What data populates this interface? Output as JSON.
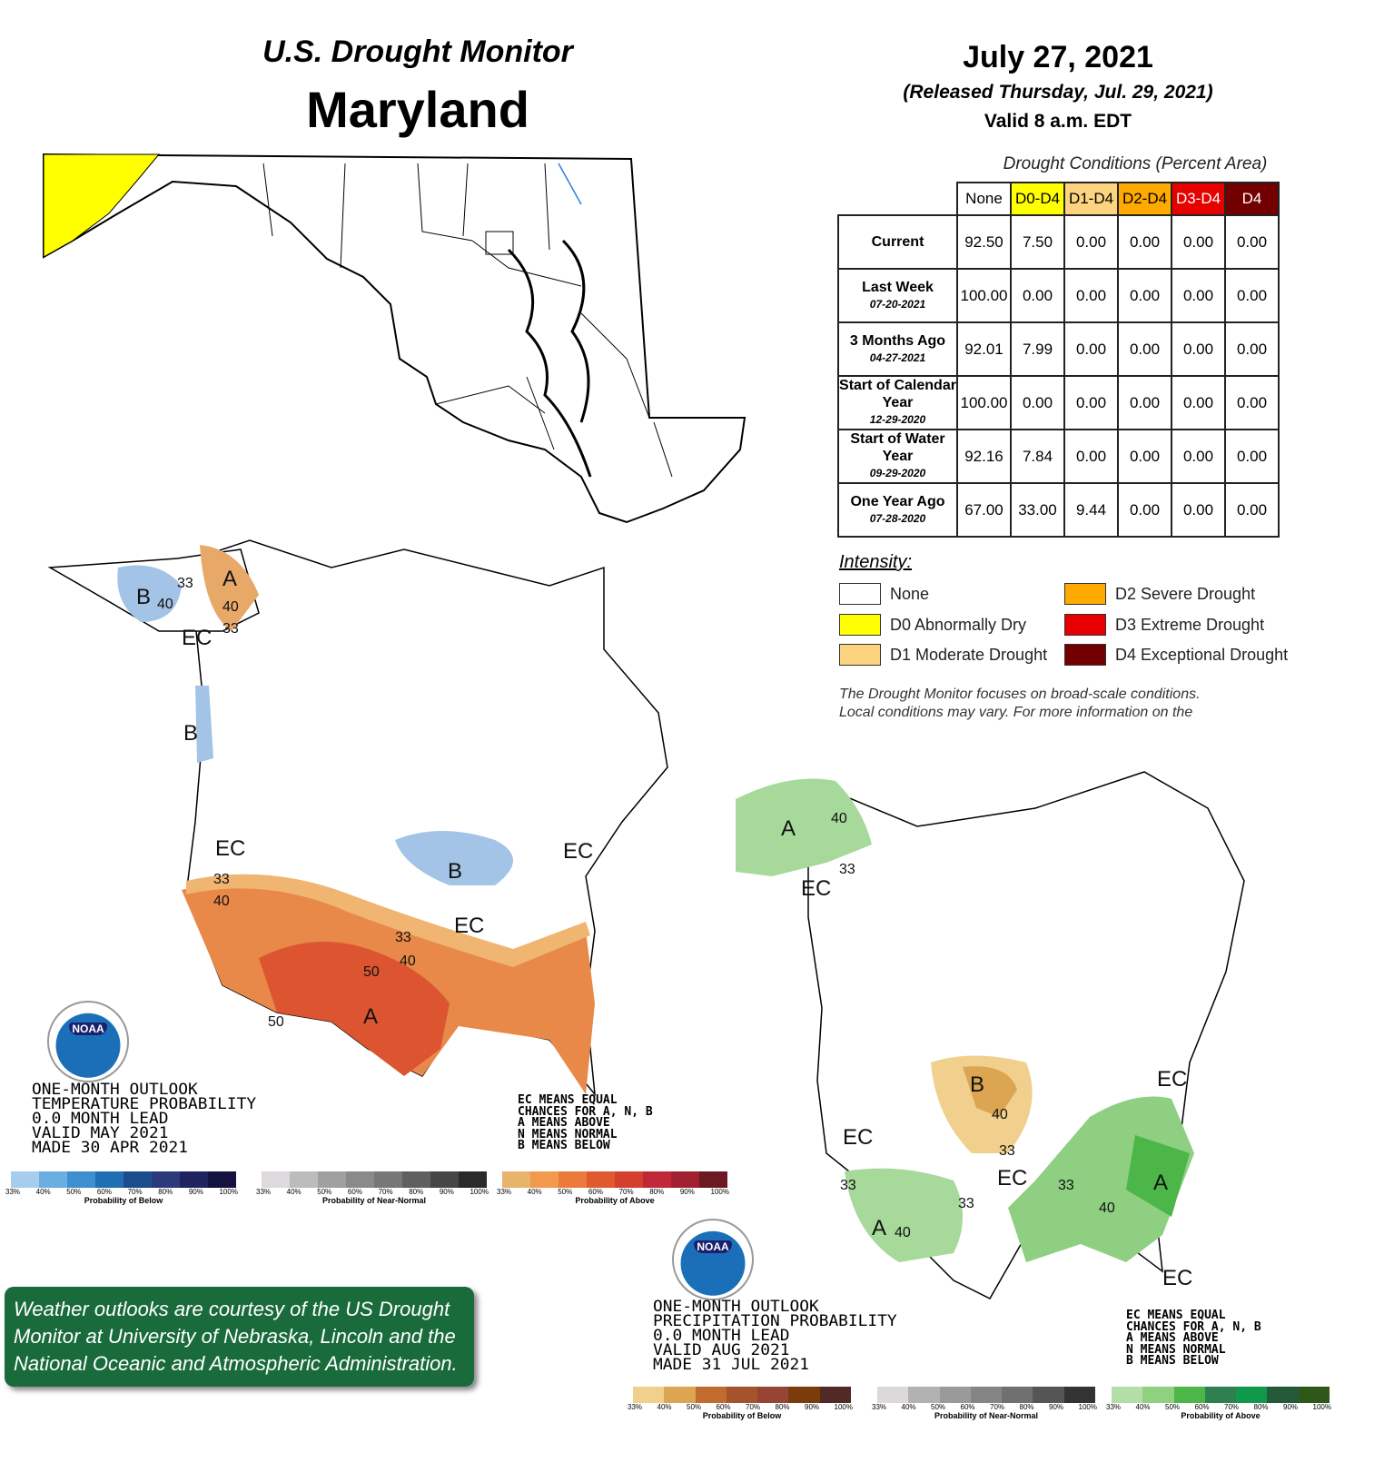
{
  "header": {
    "monitor_title": "U.S. Drought Monitor",
    "state": "Maryland",
    "date": "July 27, 2021",
    "released": "(Released Thursday, Jul. 29, 2021)",
    "valid": "Valid 8 a.m. EDT"
  },
  "table": {
    "caption": "Drought Conditions (Percent Area)",
    "columns": [
      {
        "label": "None",
        "color": "#ffffff",
        "text": "#222"
      },
      {
        "label": "D0-D4",
        "color": "#ffff00",
        "text": "#222"
      },
      {
        "label": "D1-D4",
        "color": "#fcd37f",
        "text": "#222"
      },
      {
        "label": "D2-D4",
        "color": "#ffaa00",
        "text": "#222"
      },
      {
        "label": "D3-D4",
        "color": "#e60000",
        "text": "#fff"
      },
      {
        "label": "D4",
        "color": "#730000",
        "text": "#fff"
      }
    ],
    "rows": [
      {
        "label": "Current",
        "date": "",
        "values": [
          "92.50",
          "7.50",
          "0.00",
          "0.00",
          "0.00",
          "0.00"
        ]
      },
      {
        "label": "Last Week",
        "date": "07-20-2021",
        "values": [
          "100.00",
          "0.00",
          "0.00",
          "0.00",
          "0.00",
          "0.00"
        ]
      },
      {
        "label": "3 Months Ago",
        "date": "04-27-2021",
        "values": [
          "92.01",
          "7.99",
          "0.00",
          "0.00",
          "0.00",
          "0.00"
        ]
      },
      {
        "label": "Start of Calendar Year",
        "date": "12-29-2020",
        "values": [
          "100.00",
          "0.00",
          "0.00",
          "0.00",
          "0.00",
          "0.00"
        ]
      },
      {
        "label": "Start of Water Year",
        "date": "09-29-2020",
        "values": [
          "92.16",
          "7.84",
          "0.00",
          "0.00",
          "0.00",
          "0.00"
        ]
      },
      {
        "label": "One Year Ago",
        "date": "07-28-2020",
        "values": [
          "67.00",
          "33.00",
          "9.44",
          "0.00",
          "0.00",
          "0.00"
        ]
      }
    ]
  },
  "intensity": {
    "title": "Intensity:",
    "items": [
      {
        "label": "None",
        "color": "#ffffff"
      },
      {
        "label": "D0 Abnormally Dry",
        "color": "#ffff00"
      },
      {
        "label": "D1 Moderate Drought",
        "color": "#fcd37f"
      },
      {
        "label": "D2 Severe Drought",
        "color": "#ffaa00"
      },
      {
        "label": "D3 Extreme Drought",
        "color": "#e60000"
      },
      {
        "label": "D4 Exceptional Drought",
        "color": "#730000"
      }
    ]
  },
  "disclaimer": [
    "The Drought Monitor focuses on broad-scale conditions.",
    "Local conditions may vary. For more information on the"
  ],
  "temp_outlook": {
    "title_lines": [
      "ONE-MONTH OUTLOOK",
      "TEMPERATURE PROBABILITY",
      "0.0 MONTH LEAD",
      "VALID MAY 2021",
      "MADE 30 APR 2021"
    ],
    "key_lines": [
      "EC MEANS EQUAL",
      "CHANCES FOR A, N, B",
      "A MEANS ABOVE",
      "N MEANS NORMAL",
      "B MEANS BELOW"
    ],
    "map_labels": [
      "B",
      "40",
      "33",
      "A",
      "40",
      "EC",
      "33",
      "B",
      "EC",
      "B",
      "EC",
      "33",
      "40",
      "EC",
      "33",
      "40",
      "50",
      "A",
      "50"
    ],
    "bars": [
      {
        "title": "Probability of Below",
        "colors": [
          "#a7cdec",
          "#6aafe0",
          "#3d8fd0",
          "#1f6fb2",
          "#1b4d8c",
          "#2b3a7a",
          "#1f2460",
          "#14123f"
        ]
      },
      {
        "title": "Probability of Near-Normal",
        "colors": [
          "#ddd9dc",
          "#bcbcbc",
          "#a0a0a0",
          "#8a8a8a",
          "#777",
          "#5f5f5f",
          "#464646",
          "#2a2a2a"
        ]
      },
      {
        "title": "Probability of Above",
        "colors": [
          "#e8b36b",
          "#f2994d",
          "#ec7a3a",
          "#e05a2f",
          "#d43f2e",
          "#c0283a",
          "#a02030",
          "#6b1a22"
        ]
      }
    ]
  },
  "precip_outlook": {
    "title_lines": [
      "ONE-MONTH OUTLOOK",
      "PRECIPITATION PROBABILITY",
      "0.0 MONTH LEAD",
      "VALID AUG 2021",
      "MADE 31 JUL 2021"
    ],
    "key_lines": [
      "EC MEANS EQUAL",
      "CHANCES FOR A, N, B",
      "A MEANS ABOVE",
      "N MEANS NORMAL",
      "B MEANS BELOW"
    ],
    "map_labels": [
      "A",
      "40",
      "33",
      "EC",
      "B",
      "40",
      "33",
      "EC",
      "EC",
      "EC",
      "33",
      "A",
      "33",
      "A",
      "40",
      "33",
      "40",
      "EC"
    ],
    "bars": [
      {
        "title": "Probability of Below",
        "colors": [
          "#f0d08c",
          "#dba552",
          "#c26b2e",
          "#a4532c",
          "#954436",
          "#7a3c0a",
          "#522a25"
        ]
      },
      {
        "title": "Probability of Near-Normal",
        "colors": [
          "#dcd8db",
          "#b3b1b2",
          "#9a9a9a",
          "#858585",
          "#707070",
          "#555",
          "#333"
        ]
      },
      {
        "title": "Probability of Above",
        "colors": [
          "#b3dea8",
          "#8fd081",
          "#4cb648",
          "#2f8050",
          "#10994a",
          "#245a3a",
          "#2e5719"
        ]
      }
    ]
  },
  "tick_labels": [
    "33%",
    "40%",
    "50%",
    "60%",
    "70%",
    "80%",
    "90%",
    "100%"
  ],
  "noaa_logo": "NOAA",
  "credit": "Weather outlooks are courtesy of the US Drought Monitor at University of Nebraska, Lincoln and the National Oceanic and Atmospheric Administration."
}
